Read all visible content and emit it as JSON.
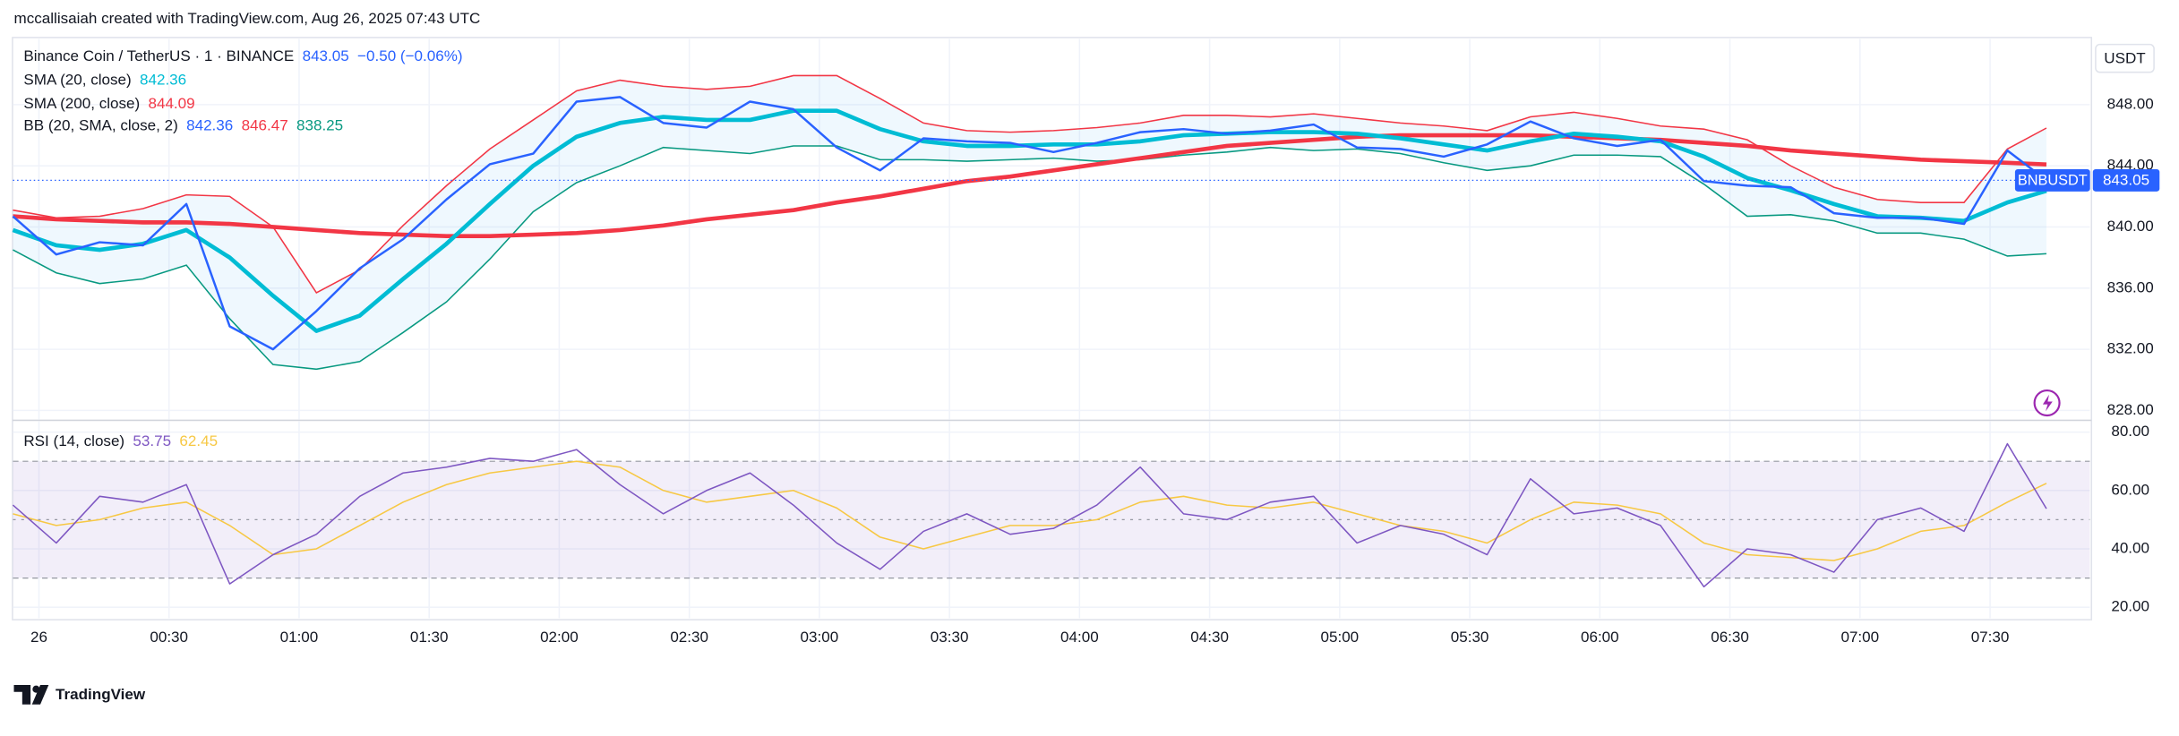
{
  "header": {
    "attribution": "mccallisaiah created with TradingView.com, Aug 26, 2025 07:43 UTC",
    "brand": "TradingView"
  },
  "chart_data": [
    {
      "type": "line",
      "symbol_tag": "BNBUSDT",
      "change_label": "−0.50 (−0.06%)",
      "unit": "USDT",
      "grid": true,
      "x": [
        -6,
        4,
        14,
        24,
        34,
        44,
        54,
        64,
        74,
        84,
        94,
        104,
        114,
        124,
        134,
        144,
        154,
        164,
        174,
        184,
        194,
        204,
        214,
        224,
        234,
        244,
        254,
        264,
        274,
        284,
        294,
        304,
        314,
        324,
        334,
        344,
        354,
        364,
        374,
        384,
        394,
        404,
        414,
        424,
        434,
        444,
        454,
        463
      ],
      "xlim": [
        -6,
        473
      ],
      "ylim": [
        827.4,
        852.3
      ],
      "yticks": [
        {
          "value": 828,
          "label": "828.00"
        },
        {
          "value": 832,
          "label": "832.00"
        },
        {
          "value": 836,
          "label": "836.00"
        },
        {
          "value": 840,
          "label": "840.00"
        },
        {
          "value": 844,
          "label": "844.00"
        },
        {
          "value": 848,
          "label": "848.00"
        }
      ],
      "series": [
        {
          "name": "Binance Coin / TetherUS · 1 · BINANCE",
          "color": "#2962ff",
          "values": [
            840.7,
            838.2,
            839.0,
            838.8,
            841.5,
            833.5,
            832.0,
            834.5,
            837.3,
            839.2,
            841.8,
            844.1,
            844.8,
            848.2,
            848.5,
            846.8,
            846.5,
            848.2,
            847.7,
            845.2,
            843.7,
            845.8,
            845.6,
            845.5,
            844.9,
            845.5,
            846.2,
            846.4,
            846.1,
            846.3,
            846.7,
            845.2,
            845.1,
            844.6,
            845.4,
            846.9,
            845.8,
            845.3,
            845.7,
            843.0,
            842.7,
            842.6,
            840.9,
            840.6,
            840.6,
            840.2,
            845.0,
            843.05
          ]
        },
        {
          "name": "SMA (20, close)",
          "color": "#00bcd4",
          "values": [
            839.8,
            838.8,
            838.5,
            838.9,
            839.8,
            838.0,
            835.5,
            833.2,
            834.2,
            836.6,
            838.9,
            841.5,
            844.0,
            845.9,
            846.8,
            847.2,
            847.0,
            847.0,
            847.6,
            847.6,
            846.4,
            845.6,
            845.3,
            845.3,
            845.4,
            845.4,
            845.6,
            846.0,
            846.1,
            846.2,
            846.2,
            846.1,
            845.8,
            845.4,
            845.0,
            845.6,
            846.1,
            845.9,
            845.6,
            844.6,
            843.2,
            842.4,
            841.5,
            840.7,
            840.6,
            840.4,
            841.6,
            842.36
          ]
        },
        {
          "name": "SMA (200, close)",
          "color": "#f23645",
          "values": [
            840.7,
            840.5,
            840.4,
            840.3,
            840.3,
            840.2,
            840.0,
            839.8,
            839.6,
            839.5,
            839.4,
            839.4,
            839.5,
            839.6,
            839.8,
            840.1,
            840.5,
            840.8,
            841.1,
            841.6,
            842.0,
            842.5,
            843.0,
            843.3,
            843.7,
            844.1,
            844.5,
            844.9,
            845.3,
            845.5,
            845.7,
            845.9,
            846.0,
            846.0,
            846.0,
            846.0,
            845.9,
            845.8,
            845.7,
            845.5,
            845.3,
            845.0,
            844.8,
            844.6,
            844.4,
            844.3,
            844.2,
            844.09
          ]
        },
        {
          "name": "BB (20, SMA, close, 2)",
          "basis_color": "#2962ff",
          "upper_color": "#f23645",
          "lower_color": "#089981",
          "fill": "rgba(33,150,243,0.07)",
          "upper": [
            841.1,
            840.6,
            840.7,
            841.2,
            842.1,
            842.0,
            840.0,
            835.7,
            837.2,
            840.1,
            842.7,
            845.1,
            847.0,
            848.9,
            849.6,
            849.2,
            849.0,
            849.2,
            849.9,
            849.9,
            848.4,
            846.8,
            846.3,
            846.2,
            846.3,
            846.5,
            846.8,
            847.3,
            847.3,
            847.2,
            847.4,
            847.1,
            846.8,
            846.6,
            846.3,
            847.2,
            847.5,
            847.1,
            846.6,
            846.4,
            845.7,
            844.0,
            842.6,
            841.8,
            841.6,
            841.6,
            845.1,
            846.47
          ],
          "lower": [
            838.5,
            837.0,
            836.3,
            836.6,
            837.5,
            834.0,
            831.0,
            830.7,
            831.2,
            833.1,
            835.1,
            837.9,
            841.0,
            842.9,
            844.0,
            845.2,
            845.0,
            844.8,
            845.3,
            845.3,
            844.4,
            844.4,
            844.3,
            844.4,
            844.5,
            844.3,
            844.4,
            844.7,
            844.9,
            845.2,
            845.0,
            845.1,
            844.8,
            844.2,
            843.7,
            844.0,
            844.7,
            844.7,
            844.6,
            842.8,
            840.7,
            840.8,
            840.4,
            839.6,
            839.6,
            839.2,
            838.1,
            838.25
          ]
        }
      ]
    },
    {
      "type": "line",
      "grid": true,
      "x": [
        -6,
        4,
        14,
        24,
        34,
        44,
        54,
        64,
        74,
        84,
        94,
        104,
        114,
        124,
        134,
        144,
        154,
        164,
        174,
        184,
        194,
        204,
        214,
        224,
        234,
        244,
        254,
        264,
        274,
        284,
        294,
        304,
        314,
        324,
        334,
        344,
        354,
        364,
        374,
        384,
        394,
        404,
        414,
        424,
        434,
        444,
        454,
        463
      ],
      "xlim": [
        -6,
        473
      ],
      "xticks": [
        {
          "value": 0,
          "label": "26"
        },
        {
          "value": 30,
          "label": "00:30"
        },
        {
          "value": 60,
          "label": "01:00"
        },
        {
          "value": 90,
          "label": "01:30"
        },
        {
          "value": 120,
          "label": "02:00"
        },
        {
          "value": 150,
          "label": "02:30"
        },
        {
          "value": 180,
          "label": "03:00"
        },
        {
          "value": 210,
          "label": "03:30"
        },
        {
          "value": 240,
          "label": "04:00"
        },
        {
          "value": 270,
          "label": "04:30"
        },
        {
          "value": 300,
          "label": "05:00"
        },
        {
          "value": 330,
          "label": "05:30"
        },
        {
          "value": 360,
          "label": "06:00"
        },
        {
          "value": 390,
          "label": "06:30"
        },
        {
          "value": 420,
          "label": "07:00"
        },
        {
          "value": 450,
          "label": "07:30"
        }
      ],
      "ylim": [
        16.2,
        83.8
      ],
      "yticks": [
        {
          "value": 20,
          "label": "20.00"
        },
        {
          "value": 40,
          "label": "40.00"
        },
        {
          "value": 60,
          "label": "60.00"
        },
        {
          "value": 80,
          "label": "80.00"
        }
      ],
      "levels": [
        70,
        50,
        30
      ],
      "band_fill": "rgba(126,87,194,0.1)",
      "series": [
        {
          "name": "RSI (14, close)",
          "color": "#7e57c2",
          "values": [
            55,
            42,
            58,
            56,
            62,
            28,
            38,
            45,
            58,
            66,
            68,
            71,
            70,
            74,
            62,
            52,
            60,
            66,
            55,
            42,
            33,
            46,
            52,
            45,
            47,
            55,
            68,
            52,
            50,
            56,
            58,
            42,
            48,
            45,
            38,
            64,
            52,
            54,
            48,
            27,
            40,
            38,
            32,
            50,
            54,
            46,
            76,
            53.75
          ]
        },
        {
          "color": "#f7c844",
          "values": [
            52,
            48,
            50,
            54,
            56,
            48,
            38,
            40,
            48,
            56,
            62,
            66,
            68,
            70,
            68,
            60,
            56,
            58,
            60,
            54,
            44,
            40,
            44,
            48,
            48,
            50,
            56,
            58,
            55,
            54,
            56,
            52,
            48,
            46,
            42,
            50,
            56,
            55,
            52,
            42,
            38,
            37,
            36,
            40,
            46,
            48,
            56,
            62.45
          ]
        }
      ]
    }
  ]
}
